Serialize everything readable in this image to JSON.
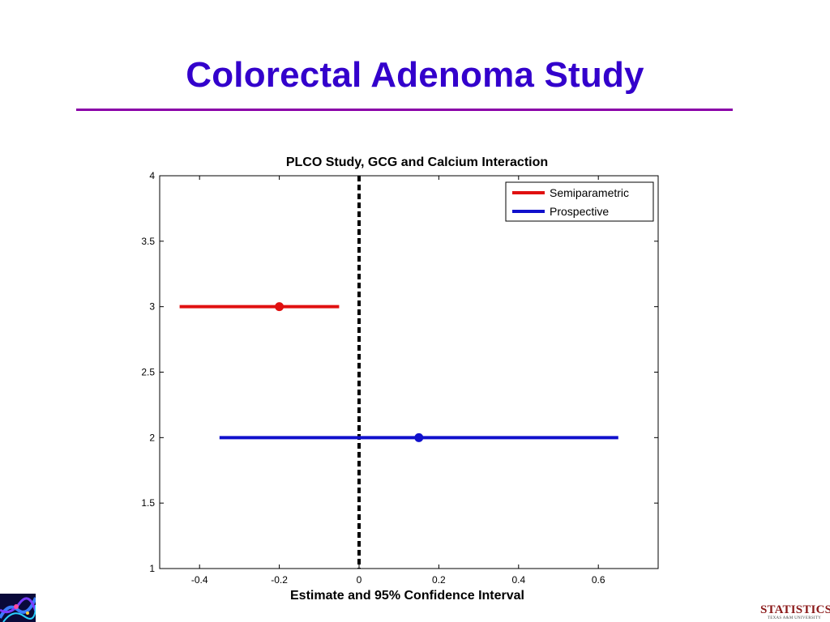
{
  "slide": {
    "title": "Colorectal Adenoma Study",
    "title_color": "#3300cc",
    "rule_color": "#8a00a8"
  },
  "footer": {
    "brand": "STATISTICS",
    "subbrand": "TEXAS A&M UNIVERSITY",
    "brand_color": "#8b1a1a"
  },
  "chart_data": {
    "type": "scatter",
    "title": "PLCO Study, GCG and Calcium Interaction",
    "xlabel": "Estimate and 95% Confidence Interval",
    "ylabel": "",
    "xlim": [
      -0.5,
      0.75
    ],
    "ylim": [
      1,
      4
    ],
    "x_ticks": [
      -0.4,
      -0.2,
      0,
      0.2,
      0.4,
      0.6
    ],
    "x_tick_labels": [
      "-0.4",
      "-0.2",
      "0",
      "0.2",
      "0.4",
      "0.6"
    ],
    "y_ticks": [
      1,
      1.5,
      2,
      2.5,
      3,
      3.5,
      4
    ],
    "y_tick_labels": [
      "1",
      "1.5",
      "2",
      "2.5",
      "3",
      "3.5",
      "4"
    ],
    "reference_line_x": 0,
    "grid": false,
    "legend_position": "top-right",
    "series": [
      {
        "name": "Semiparametric",
        "color": "#e01010",
        "y": 3,
        "estimate": -0.2,
        "ci": [
          -0.45,
          -0.05
        ]
      },
      {
        "name": "Prospective",
        "color": "#1010cc",
        "y": 2,
        "estimate": 0.15,
        "ci": [
          -0.35,
          0.65
        ]
      }
    ]
  }
}
